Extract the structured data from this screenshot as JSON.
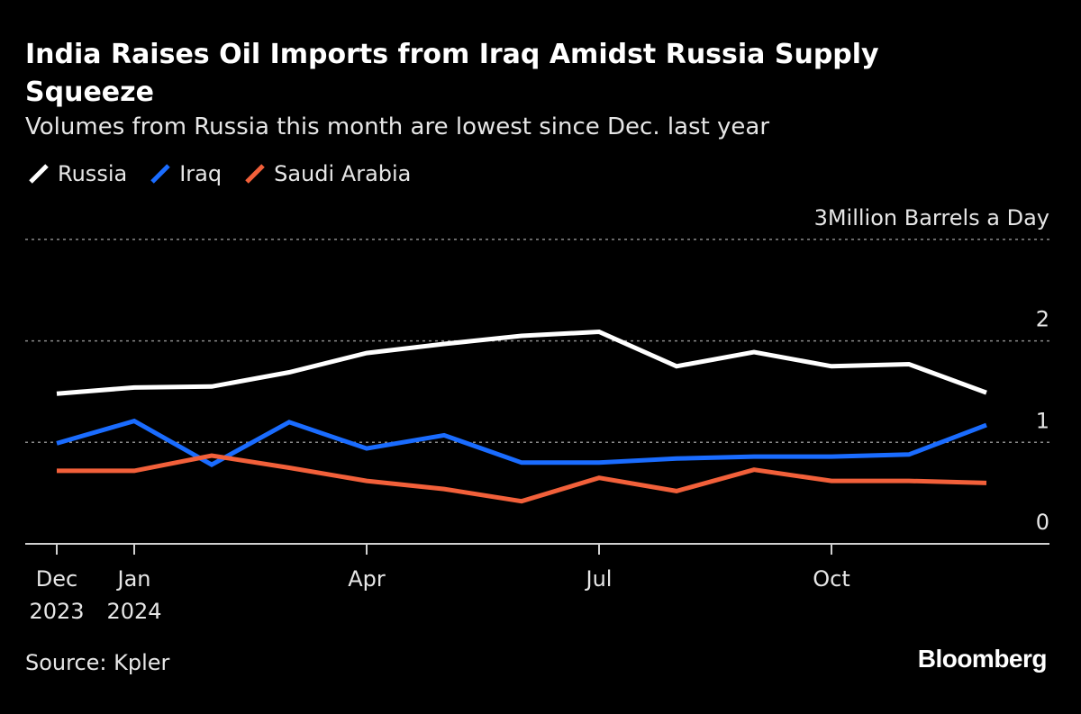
{
  "title": "India Raises Oil Imports from Iraq Amidst Russia Supply Squeeze",
  "subtitle": "Volumes from Russia this month are lowest since Dec. last year",
  "source": "Source: Kpler",
  "brand": "Bloomberg",
  "colors": {
    "background": "#000000",
    "Russia": "#ffffff",
    "Iraq": "#1a6cff",
    "Saudi Arabia": "#f2603a",
    "grid": "#8a8a8a"
  },
  "chart_data": {
    "type": "line",
    "x": [
      "2023-12",
      "2024-01",
      "2024-02",
      "2024-03",
      "2024-04",
      "2024-05",
      "2024-06",
      "2024-07",
      "2024-08",
      "2024-09",
      "2024-10",
      "2024-11",
      "2024-12"
    ],
    "x_ticks": [
      {
        "x": "2023-12",
        "label": "Dec",
        "sublabel": "2023"
      },
      {
        "x": "2024-01",
        "label": "Jan",
        "sublabel": "2024"
      },
      {
        "x": "2024-04",
        "label": "Apr",
        "sublabel": ""
      },
      {
        "x": "2024-07",
        "label": "Jul",
        "sublabel": ""
      },
      {
        "x": "2024-10",
        "label": "Oct",
        "sublabel": ""
      }
    ],
    "series": [
      {
        "name": "Russia",
        "values": [
          1.48,
          1.54,
          1.55,
          1.69,
          1.88,
          1.97,
          2.05,
          2.09,
          1.75,
          1.89,
          1.75,
          1.77,
          1.49
        ]
      },
      {
        "name": "Iraq",
        "values": [
          0.99,
          1.21,
          0.78,
          1.2,
          0.94,
          1.07,
          0.8,
          0.8,
          0.84,
          0.86,
          0.86,
          0.88,
          1.17
        ]
      },
      {
        "name": "Saudi Arabia",
        "values": [
          0.72,
          0.72,
          0.87,
          0.75,
          0.62,
          0.54,
          0.42,
          0.65,
          0.52,
          0.73,
          0.62,
          0.62,
          0.6
        ]
      }
    ],
    "y_unit_label": "Million Barrels a Day",
    "y_ticks": [
      0,
      1,
      2,
      3
    ],
    "ylim": [
      0,
      3
    ],
    "grid": true,
    "legend_position": "top-left"
  }
}
